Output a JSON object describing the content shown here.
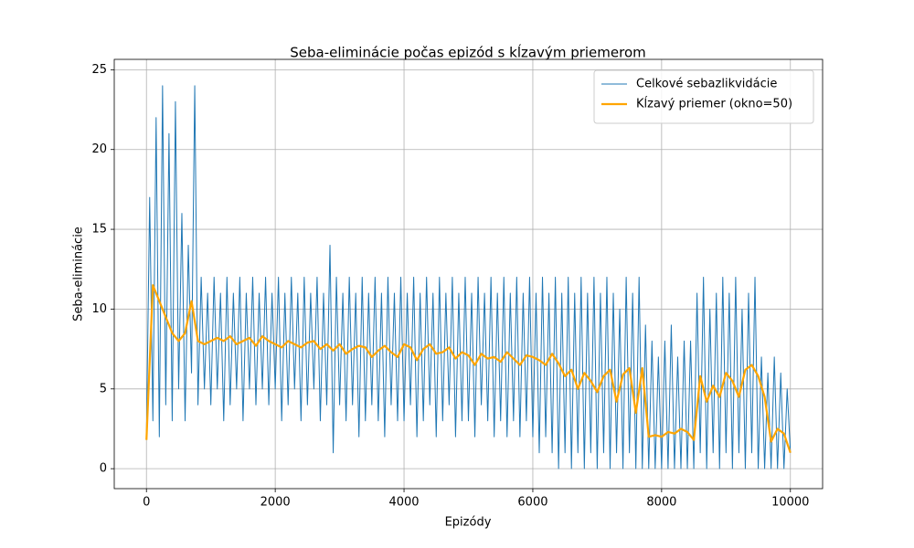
{
  "chart_data": {
    "type": "line",
    "title": "Seba-eliminácie počas epizód s kĺzavým priemerom",
    "xlabel": "Epizódy",
    "ylabel": "Seba-eliminácie",
    "xlim": [
      -500,
      10500
    ],
    "ylim": [
      -1.25,
      25.65
    ],
    "xticks": [
      0,
      2000,
      4000,
      6000,
      8000,
      10000
    ],
    "yticks": [
      0,
      5,
      10,
      15,
      20,
      25
    ],
    "grid": true,
    "legend": "upper right",
    "series": [
      {
        "name": "Celkové sebazlikvidácie",
        "color": "#1f77b4",
        "width": 1,
        "x": [
          0,
          50,
          100,
          150,
          200,
          250,
          300,
          350,
          400,
          450,
          500,
          550,
          600,
          650,
          700,
          750,
          800,
          850,
          900,
          950,
          1000,
          1050,
          1100,
          1150,
          1200,
          1250,
          1300,
          1350,
          1400,
          1450,
          1500,
          1550,
          1600,
          1650,
          1700,
          1750,
          1800,
          1850,
          1900,
          1950,
          2000,
          2050,
          2100,
          2150,
          2200,
          2250,
          2300,
          2350,
          2400,
          2450,
          2500,
          2550,
          2600,
          2650,
          2700,
          2750,
          2800,
          2850,
          2900,
          2950,
          3000,
          3050,
          3100,
          3150,
          3200,
          3250,
          3300,
          3350,
          3400,
          3450,
          3500,
          3550,
          3600,
          3650,
          3700,
          3750,
          3800,
          3850,
          3900,
          3950,
          4000,
          4050,
          4100,
          4150,
          4200,
          4250,
          4300,
          4350,
          4400,
          4450,
          4500,
          4550,
          4600,
          4650,
          4700,
          4750,
          4800,
          4850,
          4900,
          4950,
          5000,
          5050,
          5100,
          5150,
          5200,
          5250,
          5300,
          5350,
          5400,
          5450,
          5500,
          5550,
          5600,
          5650,
          5700,
          5750,
          5800,
          5850,
          5900,
          5950,
          6000,
          6050,
          6100,
          6150,
          6200,
          6250,
          6300,
          6350,
          6400,
          6450,
          6500,
          6550,
          6600,
          6650,
          6700,
          6750,
          6800,
          6850,
          6900,
          6950,
          7000,
          7050,
          7100,
          7150,
          7200,
          7250,
          7300,
          7350,
          7400,
          7450,
          7500,
          7550,
          7600,
          7650,
          7700,
          7750,
          7800,
          7850,
          7900,
          7950,
          8000,
          8050,
          8100,
          8150,
          8200,
          8250,
          8300,
          8350,
          8400,
          8450,
          8500,
          8550,
          8600,
          8650,
          8700,
          8750,
          8800,
          8850,
          8900,
          8950,
          9000,
          9050,
          9100,
          9150,
          9200,
          9250,
          9300,
          9350,
          9400,
          9450,
          9500,
          9550,
          9600,
          9650,
          9700,
          9750,
          9800,
          9850,
          9900,
          9950,
          10000
        ],
        "values": [
          2,
          17,
          3,
          22,
          2,
          24,
          4,
          21,
          3,
          23,
          5,
          16,
          3,
          14,
          6,
          24,
          4,
          12,
          5,
          11,
          4,
          12,
          5,
          11,
          3,
          12,
          4,
          11,
          5,
          12,
          3,
          11,
          5,
          12,
          4,
          11,
          5,
          12,
          4,
          11,
          5,
          12,
          3,
          11,
          4,
          12,
          5,
          11,
          3,
          12,
          4,
          11,
          5,
          12,
          3,
          11,
          4,
          14,
          1,
          12,
          4,
          11,
          3,
          12,
          4,
          11,
          2,
          12,
          3,
          11,
          4,
          12,
          3,
          11,
          2,
          12,
          4,
          11,
          3,
          12,
          3,
          11,
          4,
          12,
          2,
          11,
          3,
          12,
          4,
          11,
          2,
          12,
          3,
          11,
          4,
          12,
          2,
          11,
          3,
          12,
          3,
          11,
          2,
          12,
          4,
          11,
          3,
          12,
          2,
          11,
          3,
          12,
          2,
          11,
          3,
          12,
          2,
          11,
          3,
          12,
          2,
          11,
          1,
          12,
          2,
          11,
          1,
          12,
          0,
          11,
          1,
          12,
          0,
          11,
          1,
          12,
          0,
          11,
          1,
          12,
          0,
          11,
          1,
          12,
          0,
          11,
          1,
          10,
          0,
          12,
          1,
          11,
          0,
          12,
          0,
          9,
          0,
          8,
          0,
          7,
          0,
          8,
          0,
          9,
          0,
          7,
          0,
          8,
          0,
          8,
          0,
          11,
          1,
          12,
          0,
          10,
          1,
          11,
          0,
          12,
          1,
          11,
          0,
          12,
          1,
          10,
          0,
          11,
          1,
          12,
          0,
          7,
          0,
          6,
          0,
          7,
          0,
          6,
          0,
          5,
          1
        ]
      },
      {
        "name": "Kĺzavý priemer (okno=50)",
        "color": "#ffa500",
        "width": 2.2,
        "x": [
          0,
          100,
          200,
          300,
          400,
          500,
          600,
          700,
          800,
          900,
          1000,
          1100,
          1200,
          1300,
          1400,
          1500,
          1600,
          1700,
          1800,
          1900,
          2000,
          2100,
          2200,
          2300,
          2400,
          2500,
          2600,
          2700,
          2800,
          2900,
          3000,
          3100,
          3200,
          3300,
          3400,
          3500,
          3600,
          3700,
          3800,
          3900,
          4000,
          4100,
          4200,
          4300,
          4400,
          4500,
          4600,
          4700,
          4800,
          4900,
          5000,
          5100,
          5200,
          5300,
          5400,
          5500,
          5600,
          5700,
          5800,
          5900,
          6000,
          6100,
          6200,
          6300,
          6400,
          6500,
          6600,
          6700,
          6800,
          6900,
          7000,
          7100,
          7200,
          7300,
          7400,
          7500,
          7600,
          7700,
          7800,
          7900,
          8000,
          8100,
          8200,
          8300,
          8400,
          8500,
          8600,
          8700,
          8800,
          8900,
          9000,
          9100,
          9200,
          9300,
          9400,
          9500,
          9600,
          9700,
          9800,
          9900,
          10000
        ],
        "values": [
          1.8,
          11.5,
          10.5,
          9.5,
          8.5,
          8,
          8.5,
          10.5,
          8,
          7.8,
          8,
          8.2,
          8,
          8.3,
          7.8,
          8,
          8.2,
          7.7,
          8.3,
          8,
          7.8,
          7.6,
          8,
          7.8,
          7.6,
          7.9,
          8,
          7.5,
          7.8,
          7.4,
          7.8,
          7.2,
          7.5,
          7.7,
          7.6,
          7.0,
          7.4,
          7.7,
          7.3,
          7.0,
          7.8,
          7.6,
          6.8,
          7.5,
          7.8,
          7.2,
          7.3,
          7.6,
          6.9,
          7.3,
          7.1,
          6.5,
          7.2,
          6.9,
          7.0,
          6.7,
          7.3,
          6.9,
          6.5,
          7.1,
          7.0,
          6.8,
          6.5,
          7.2,
          6.6,
          5.8,
          6.2,
          5.0,
          6.0,
          5.5,
          4.8,
          5.8,
          6.2,
          4.2,
          5.9,
          6.3,
          3.5,
          6.3,
          2.0,
          2.1,
          2.0,
          2.3,
          2.2,
          2.5,
          2.3,
          1.8,
          5.8,
          4.2,
          5.2,
          4.5,
          6.0,
          5.5,
          4.5,
          6.2,
          6.5,
          5.8,
          4.5,
          1.7,
          2.5,
          2.2,
          1.0
        ]
      }
    ]
  }
}
